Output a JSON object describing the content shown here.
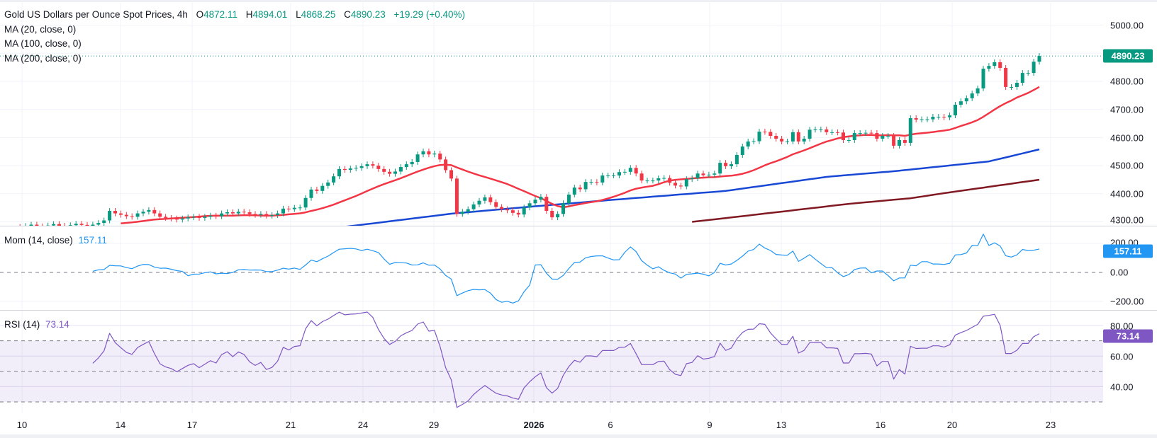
{
  "header": {
    "title": "Gold US Dollars per Ounce Spot Prices, 4h",
    "open_label": "O",
    "open": "4872.11",
    "high_label": "H",
    "high": "4894.01",
    "low_label": "L",
    "low": "4868.25",
    "close_label": "C",
    "close": "4890.23",
    "change": "+19.29 (+0.40%)"
  },
  "indicators": {
    "ma20": "MA (20, close, 0)",
    "ma100": "MA (100, close, 0)",
    "ma200": "MA (200, close, 0)",
    "mom_label": "Mom (14, close)",
    "mom_value": "157.11",
    "rsi_label": "RSI (14)",
    "rsi_value": "73.14"
  },
  "price_axis": {
    "ticks": [
      "5000.00",
      "4800.00",
      "4700.00",
      "4600.00",
      "4500.00",
      "4400.00",
      "4300.00"
    ],
    "last_price_tag": "4890.23"
  },
  "mom_axis": {
    "ticks": [
      "200.00",
      "0.00",
      "−200.00"
    ],
    "value_tag": "157.11"
  },
  "rsi_axis": {
    "ticks": [
      "80.00",
      "60.00",
      "40.00"
    ],
    "value_tag": "73.14"
  },
  "time_axis": [
    "10",
    "14",
    "17",
    "21",
    "24",
    "29",
    "2026",
    "6",
    "9",
    "13",
    "16",
    "20",
    "23"
  ],
  "colors": {
    "up": "#089981",
    "down": "#f23645",
    "ma20": "#f23645",
    "ma100": "#1848d4",
    "ma200": "#801922",
    "mom": "#2196f3",
    "rsi": "#7e57c2",
    "rsi_band": "#7e57c2"
  },
  "chart_data": {
    "type": "candlestick",
    "timeframe": "4h",
    "ylim": [
      4317,
      5000
    ],
    "closes": [
      4282,
      4278,
      4285,
      4290,
      4284,
      4280,
      4287,
      4292,
      4286,
      4281,
      4288,
      4293,
      4289,
      4284,
      4290,
      4296,
      4305,
      4339,
      4330,
      4325,
      4320,
      4318,
      4330,
      4336,
      4342,
      4330,
      4318,
      4314,
      4312,
      4308,
      4312,
      4316,
      4318,
      4314,
      4318,
      4322,
      4320,
      4330,
      4334,
      4330,
      4336,
      4334,
      4328,
      4325,
      4328,
      4322,
      4324,
      4330,
      4347,
      4345,
      4350,
      4351,
      4385,
      4415,
      4410,
      4428,
      4440,
      4462,
      4488,
      4485,
      4490,
      4492,
      4498,
      4505,
      4500,
      4488,
      4478,
      4471,
      4479,
      4495,
      4505,
      4513,
      4540,
      4551,
      4540,
      4543,
      4522,
      4484,
      4454,
      4328,
      4336,
      4345,
      4362,
      4375,
      4387,
      4370,
      4353,
      4345,
      4341,
      4332,
      4326,
      4351,
      4366,
      4379,
      4389,
      4339,
      4316,
      4328,
      4366,
      4397,
      4422,
      4416,
      4442,
      4442,
      4440,
      4465,
      4465,
      4465,
      4477,
      4478,
      4492,
      4472,
      4447,
      4447,
      4447,
      4455,
      4456,
      4439,
      4429,
      4426,
      4452,
      4455,
      4472,
      4466,
      4468,
      4472,
      4510,
      4498,
      4505,
      4538,
      4568,
      4586,
      4587,
      4621,
      4620,
      4606,
      4596,
      4586,
      4586,
      4619,
      4586,
      4596,
      4628,
      4629,
      4629,
      4619,
      4619,
      4618,
      4591,
      4591,
      4616,
      4616,
      4617,
      4616,
      4596,
      4606,
      4606,
      4571,
      4591,
      4581,
      4669,
      4664,
      4665,
      4665,
      4674,
      4674,
      4672,
      4679,
      4717,
      4729,
      4740,
      4757,
      4775,
      4845,
      4855,
      4868,
      4848,
      4780,
      4780,
      4795,
      4830,
      4830,
      4870,
      4890.23
    ],
    "ma20_period": 20,
    "ma100": [
      {
        "bar": 58,
        "value": 4280
      },
      {
        "bar": 70,
        "value": 4309
      },
      {
        "bar": 78,
        "value": 4329
      },
      {
        "bar": 91,
        "value": 4352
      },
      {
        "bar": 106,
        "value": 4377
      },
      {
        "bar": 127,
        "value": 4410
      },
      {
        "bar": 145,
        "value": 4460
      },
      {
        "bar": 149,
        "value": 4467
      },
      {
        "bar": 157,
        "value": 4480
      },
      {
        "bar": 174,
        "value": 4515
      },
      {
        "bar": 183,
        "value": 4558
      }
    ],
    "ma200": [
      {
        "bar": 121,
        "value": 4300
      },
      {
        "bar": 126,
        "value": 4311
      },
      {
        "bar": 149,
        "value": 4364
      },
      {
        "bar": 160,
        "value": 4384
      },
      {
        "bar": 166,
        "value": 4402
      },
      {
        "bar": 183,
        "value": 4450
      }
    ],
    "last_price": 4890.23,
    "mom_period": 14,
    "mom_ylim": [
      -290,
      320
    ],
    "rsi_period": 14,
    "rsi_levels": [
      70,
      50,
      30
    ],
    "rsi_ylim": [
      25,
      90
    ],
    "x_tick_labels": [
      "10",
      "14",
      "17",
      "21",
      "24",
      "29",
      "2026",
      "6",
      "9",
      "13",
      "16",
      "20",
      "23"
    ]
  }
}
